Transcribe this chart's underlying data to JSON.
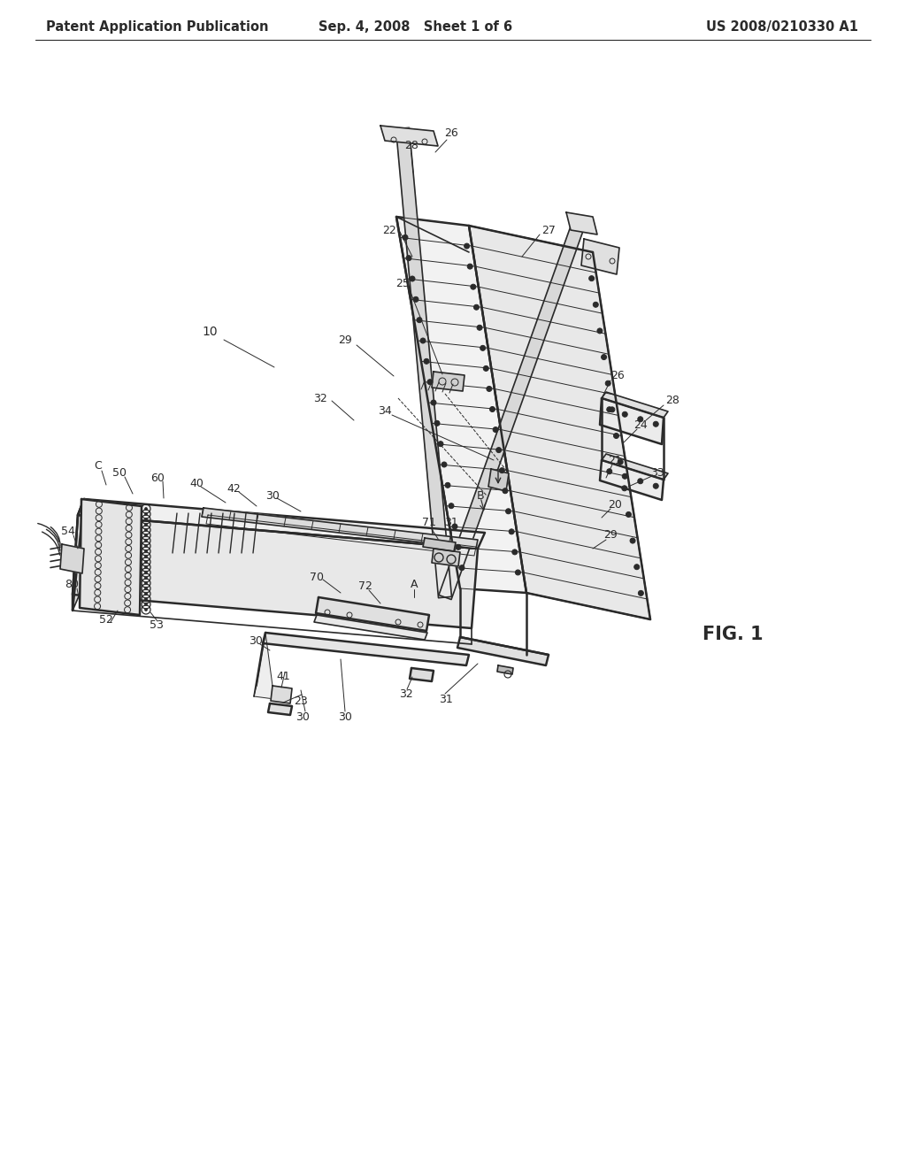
{
  "bg_color": "#ffffff",
  "line_color": "#2a2a2a",
  "header_left": "Patent Application Publication",
  "header_center": "Sep. 4, 2008   Sheet 1 of 6",
  "header_right": "US 2008/0210330 A1",
  "fig_label": "FIG. 1",
  "header_fontsize": 10.5,
  "label_fontsize": 9.5,
  "fig_label_fontsize": 15,
  "lw_thick": 1.8,
  "lw_med": 1.2,
  "lw_thin": 0.7,
  "lw_xtra": 0.5
}
